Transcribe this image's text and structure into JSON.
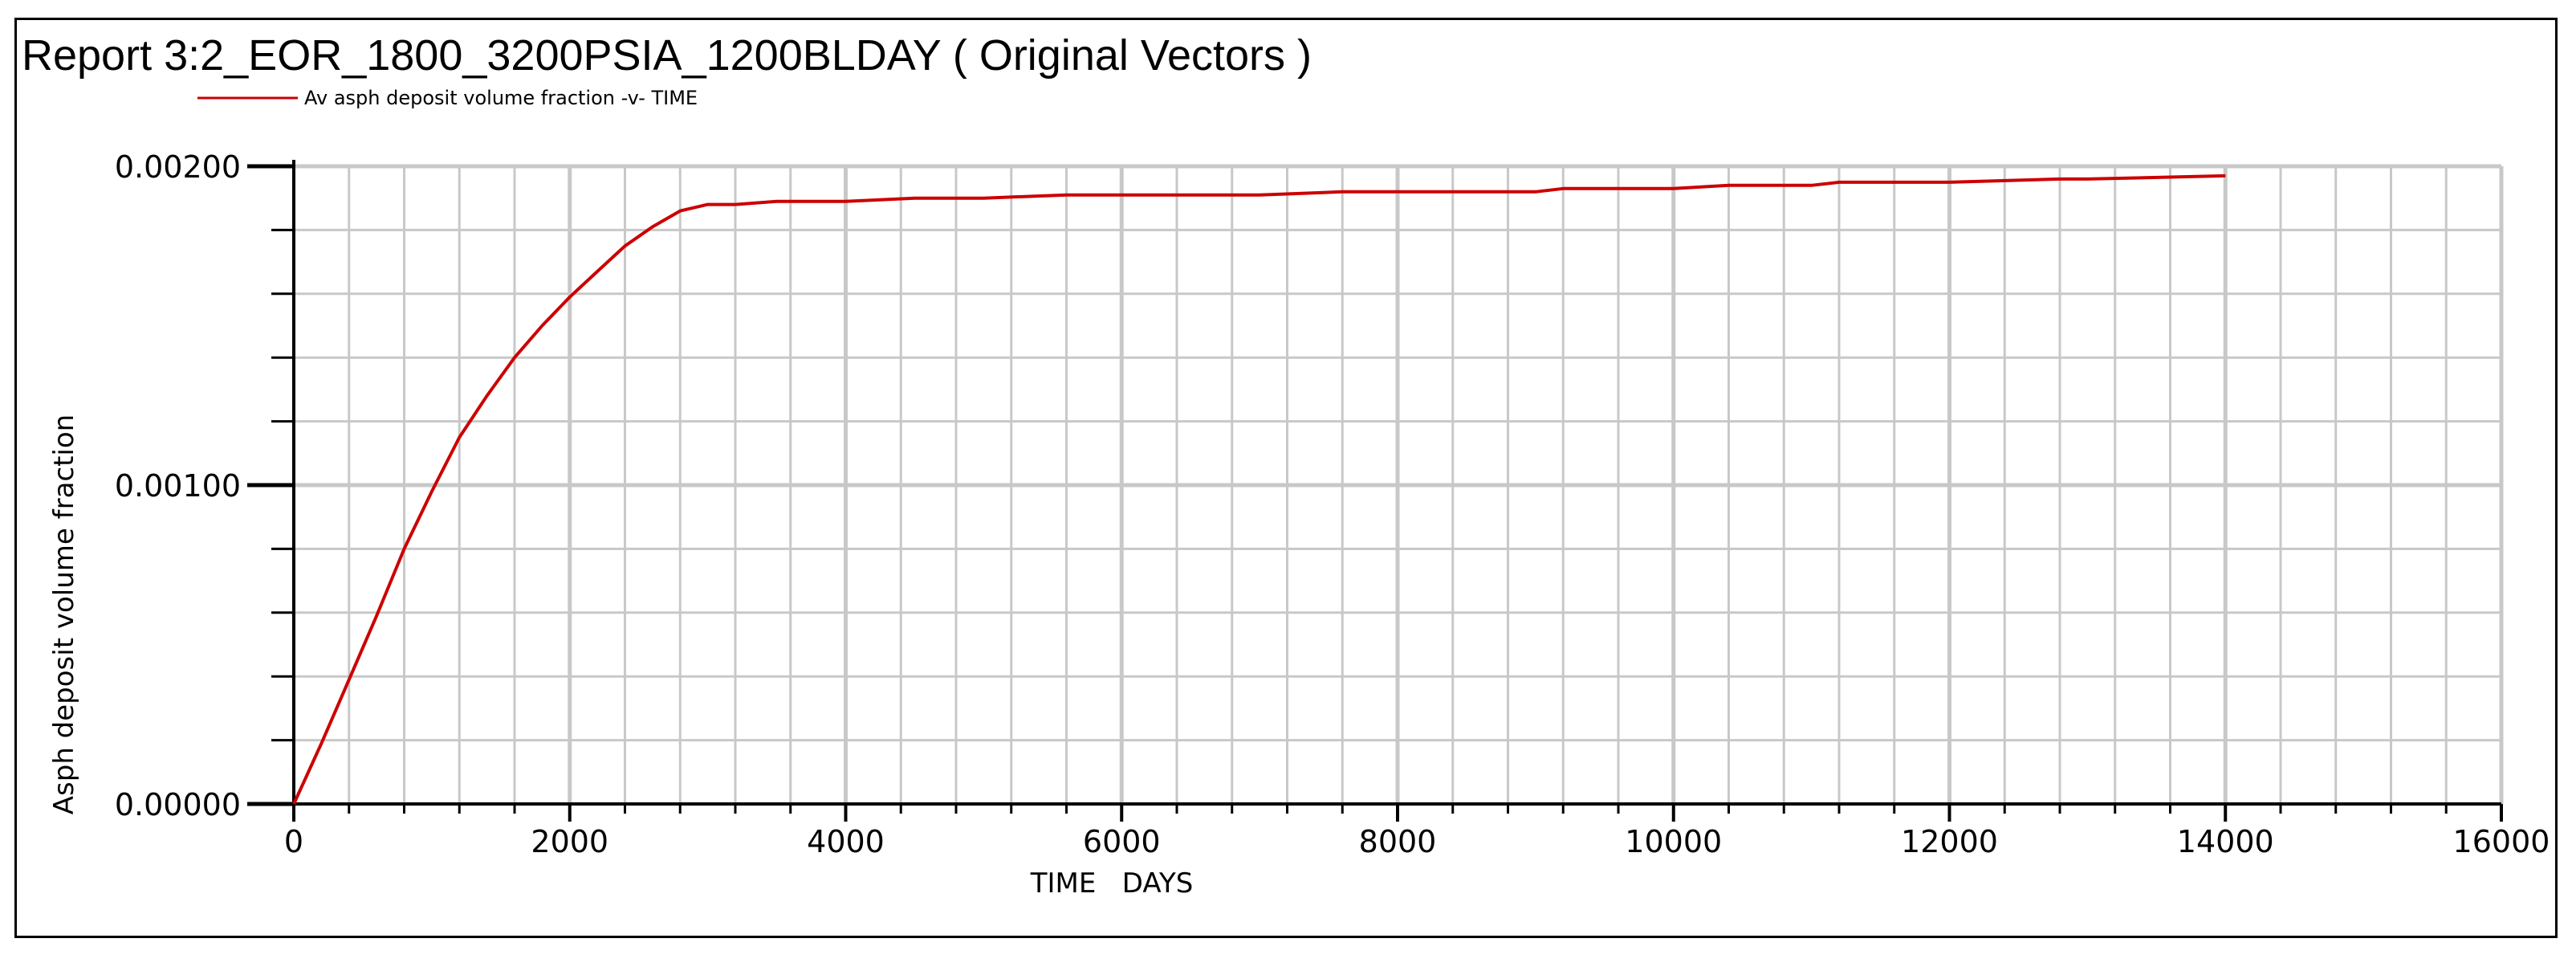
{
  "chart_data": {
    "type": "line",
    "title": "Report 3:2_EOR_1800_3200PSIA_1200BLDAY ( Original Vectors )",
    "xlabel": "TIME   DAYS",
    "ylabel": "Asph deposit volume fraction",
    "xlim": [
      0,
      16000
    ],
    "ylim": [
      0,
      0.002
    ],
    "x_ticks": [
      0,
      2000,
      4000,
      6000,
      8000,
      10000,
      12000,
      14000,
      16000
    ],
    "x_tick_labels": [
      "0",
      "2000",
      "4000",
      "6000",
      "8000",
      "10000",
      "12000",
      "14000",
      "16000"
    ],
    "y_ticks": [
      0,
      0.001,
      0.002
    ],
    "y_tick_labels": [
      "0.00000",
      "0.00100",
      "0.00200"
    ],
    "x_minor_step": 400,
    "y_minor_step": 0.0002,
    "grid": true,
    "legend_position": "top-left",
    "colors": {
      "series": "#cc0000",
      "grid": "#c8c8c8",
      "axis": "#000000"
    },
    "series": [
      {
        "name": "Av asph deposit volume fraction -v- TIME",
        "x": [
          0,
          200,
          400,
          600,
          800,
          1000,
          1200,
          1400,
          1600,
          1800,
          2000,
          2200,
          2400,
          2600,
          2800,
          3000,
          3200,
          3500,
          4000,
          4500,
          5000,
          5600,
          6000,
          7000,
          7600,
          8000,
          9000,
          9200,
          10000,
          10400,
          11000,
          11200,
          12000,
          12800,
          13000,
          14000
        ],
        "y": [
          0,
          0.00019,
          0.00039,
          0.00059,
          0.0008,
          0.00098,
          0.00115,
          0.00128,
          0.0014,
          0.0015,
          0.00159,
          0.00167,
          0.00175,
          0.00181,
          0.00186,
          0.00188,
          0.00188,
          0.00189,
          0.00189,
          0.0019,
          0.0019,
          0.00191,
          0.00191,
          0.00191,
          0.00192,
          0.00192,
          0.00192,
          0.00193,
          0.00193,
          0.00194,
          0.00194,
          0.00195,
          0.00195,
          0.00196,
          0.00196,
          0.00197
        ]
      }
    ]
  }
}
